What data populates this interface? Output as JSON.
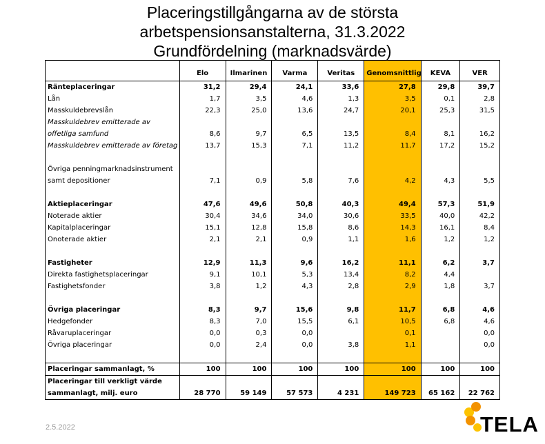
{
  "title": {
    "line1": "Placeringstillgångarna av de största",
    "line2": "arbetspensionsanstalterna, 31.3.2022",
    "line3": "Grundfördelning (marknadsvärde)"
  },
  "columns": [
    "Elo",
    "Ilmarinen",
    "Varma",
    "Veritas",
    "Genomsnittlig",
    "KEVA",
    "VER"
  ],
  "rows": [
    {
      "label": "Ränteplaceringar",
      "values": [
        "31,2",
        "29,4",
        "24,1",
        "33,6",
        "27,8",
        "29,8",
        "39,7"
      ]
    },
    {
      "label": "Lån",
      "values": [
        "1,7",
        "3,5",
        "4,6",
        "1,3",
        "3,5",
        "0,1",
        "2,8"
      ]
    },
    {
      "label": "Masskuldebrevslån",
      "values": [
        "22,3",
        "25,0",
        "13,6",
        "24,7",
        "20,1",
        "25,3",
        "31,5"
      ]
    },
    {
      "label": "Masskuldebrev emitterade av offetliga samfund",
      "values": [
        "8,6",
        "9,7",
        "6,5",
        "13,5",
        "8,4",
        "8,1",
        "16,2"
      ]
    },
    {
      "label": "Masskuldebrev emitterade av företag",
      "values": [
        "13,7",
        "15,3",
        "7,1",
        "11,2",
        "11,7",
        "17,2",
        "15,2"
      ]
    },
    {
      "label": "Övriga penningmarknadsinstrument samt depositioner",
      "values": [
        "7,1",
        "0,9",
        "5,8",
        "7,6",
        "4,2",
        "4,3",
        "5,5"
      ]
    },
    {
      "label": "Aktieplaceringar",
      "values": [
        "47,6",
        "49,6",
        "50,8",
        "40,3",
        "49,4",
        "57,3",
        "51,9"
      ]
    },
    {
      "label": "Noterade aktier",
      "values": [
        "30,4",
        "34,6",
        "34,0",
        "30,6",
        "33,5",
        "40,0",
        "42,2"
      ]
    },
    {
      "label": "Kapitalplaceringar",
      "values": [
        "15,1",
        "12,8",
        "15,8",
        "8,6",
        "14,3",
        "16,1",
        "8,4"
      ]
    },
    {
      "label": "Onoterade aktier",
      "values": [
        "2,1",
        "2,1",
        "0,9",
        "1,1",
        "1,6",
        "1,2",
        "1,2"
      ]
    },
    {
      "label": "Fastigheter",
      "values": [
        "12,9",
        "11,3",
        "9,6",
        "16,2",
        "11,1",
        "6,2",
        "3,7"
      ]
    },
    {
      "label": "Direkta fastighetsplaceringar",
      "values": [
        "9,1",
        "10,1",
        "5,3",
        "13,4",
        "8,2",
        "4,4",
        ""
      ]
    },
    {
      "label": "Fastighetsfonder",
      "values": [
        "3,8",
        "1,2",
        "4,3",
        "2,8",
        "2,9",
        "1,8",
        "3,7"
      ]
    },
    {
      "label": "Övriga placeringar",
      "values": [
        "8,3",
        "9,7",
        "15,6",
        "9,8",
        "11,7",
        "6,8",
        "4,6"
      ]
    },
    {
      "label": "Hedgefonder",
      "values": [
        "8,3",
        "7,0",
        "15,5",
        "6,1",
        "10,5",
        "6,8",
        "4,6"
      ]
    },
    {
      "label": "Råvaruplaceringar",
      "values": [
        "0,0",
        "0,3",
        "0,0",
        "",
        "0,1",
        "",
        "0,0"
      ]
    },
    {
      "label": "Övriga placeringar",
      "values": [
        "0,0",
        "2,4",
        "0,0",
        "3,8",
        "1,1",
        "",
        "0,0"
      ]
    },
    {
      "label": "Placeringar sammanlagt, %",
      "values": [
        "100",
        "100",
        "100",
        "100",
        "100",
        "100",
        "100"
      ]
    },
    {
      "label": "Placeringar till verkligt värde sammanlagt, milj. euro",
      "values": [
        "28 770",
        "59 149",
        "57 573",
        "4 231",
        "149 723",
        "65 162",
        "22 762"
      ]
    }
  ],
  "footer": {
    "date": "2.5.2022",
    "logo_text": "TELA"
  },
  "colors": {
    "highlight": "#FFC000",
    "logo_orange": "#F39200",
    "logo_yellow": "#FDC300"
  }
}
